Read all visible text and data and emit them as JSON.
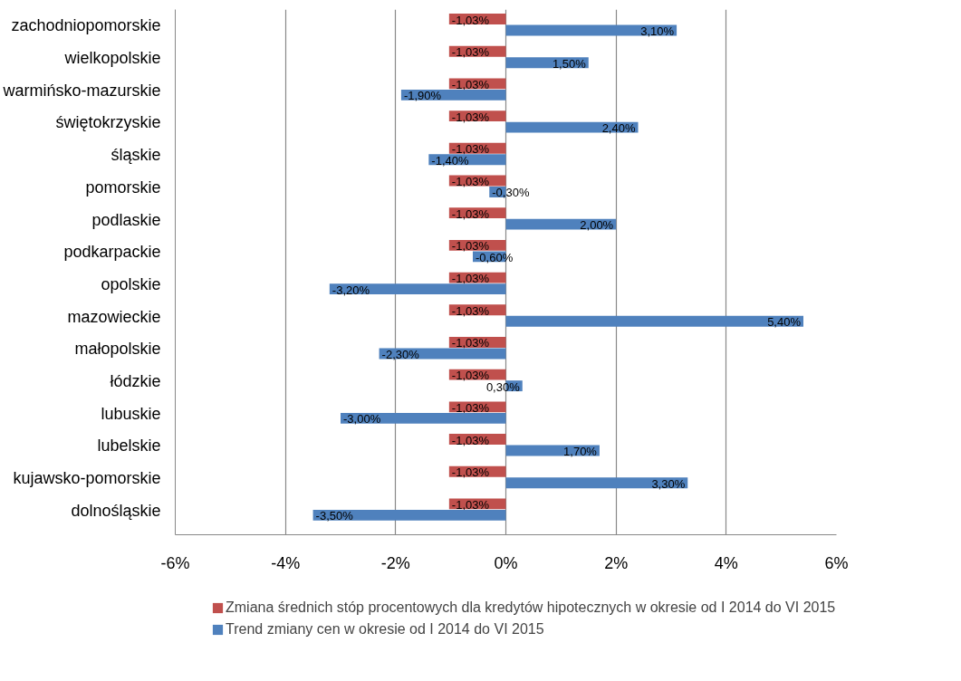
{
  "chart_data": {
    "type": "bar",
    "orientation": "horizontal",
    "categories": [
      "zachodniopomorskie",
      "wielkopolskie",
      "warmińsko-mazurskie",
      "świętokrzyskie",
      "śląskie",
      "pomorskie",
      "podlaskie",
      "podkarpackie",
      "opolskie",
      "mazowieckie",
      "małopolskie",
      "łódzkie",
      "lubuskie",
      "lubelskie",
      "kujawsko-pomorskie",
      "dolnośląskie"
    ],
    "series": [
      {
        "name": "Zmiana średnich stóp procentowych dla kredytów hipotecznych w okresie od I 2014 do VI 2015",
        "color": "#c0504d",
        "values": [
          -1.03,
          -1.03,
          -1.03,
          -1.03,
          -1.03,
          -1.03,
          -1.03,
          -1.03,
          -1.03,
          -1.03,
          -1.03,
          -1.03,
          -1.03,
          -1.03,
          -1.03,
          -1.03
        ],
        "value_labels": [
          "-1,03%",
          "-1,03%",
          "-1,03%",
          "-1,03%",
          "-1,03%",
          "-1,03%",
          "-1,03%",
          "-1,03%",
          "-1,03%",
          "-1,03%",
          "-1,03%",
          "-1,03%",
          "-1,03%",
          "-1,03%",
          "-1,03%",
          "-1,03%"
        ]
      },
      {
        "name": "Trend zmiany cen w okresie od I 2014 do VI 2015",
        "color": "#4f81bd",
        "values": [
          3.1,
          1.5,
          -1.9,
          2.4,
          -1.4,
          -0.3,
          2.0,
          -0.6,
          -3.2,
          5.4,
          -2.3,
          0.3,
          -3.0,
          1.7,
          3.3,
          -3.5
        ],
        "value_labels": [
          "3,10%",
          "1,50%",
          "-1,90%",
          "2,40%",
          "-1,40%",
          "-0,30%",
          "2,00%",
          "-0,60%",
          "-3,20%",
          "5,40%",
          "-2,30%",
          "0,30%",
          "-3,00%",
          "1,70%",
          "3,30%",
          "-3,50%"
        ]
      }
    ],
    "xlim": [
      -6,
      6
    ],
    "xticks": [
      {
        "value": -6,
        "label": "-6%"
      },
      {
        "value": -4,
        "label": "-4%"
      },
      {
        "value": -2,
        "label": "-2%"
      },
      {
        "value": 0,
        "label": "0%"
      },
      {
        "value": 2,
        "label": "2%"
      },
      {
        "value": 4,
        "label": "4%"
      },
      {
        "value": 6,
        "label": "6%"
      }
    ],
    "grid": "x",
    "legend": "bottom"
  }
}
